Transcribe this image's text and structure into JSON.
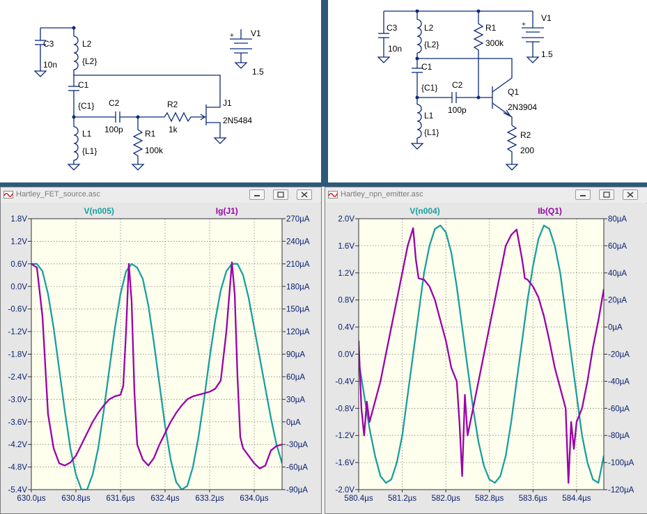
{
  "colors": {
    "trace_a": "#1a9e9e",
    "trace_b": "#9900aa",
    "plot_bg": "#ffffee",
    "grid": "#7f7f7f",
    "wire": "#0b2a7a"
  },
  "schematic_fet": {
    "labels": {
      "c3": "C3",
      "c3_val": "10n",
      "l2": "L2",
      "l2_val": "{L2}",
      "c1": "C1",
      "c1_val": "{C1}",
      "l1": "L1",
      "l1_val": "{L1}",
      "c2": "C2",
      "c2_val": "100p",
      "r1": "R1",
      "r1_val": "100k",
      "r2": "R2",
      "r2_val": "1k",
      "j1": "J1",
      "j1_model": "2N5484",
      "v1": "V1",
      "v1_val": "1.5",
      "plus": "+"
    }
  },
  "schematic_npn": {
    "labels": {
      "c3": "C3",
      "c3_val": "10n",
      "l2": "L2",
      "l2_val": "{L2}",
      "c1": "C1",
      "c1_val": "{C1}",
      "l1": "L1",
      "l1_val": "{L1}",
      "c2": "C2",
      "c2_val": "100p",
      "r1": "R1",
      "r1_val": "300k",
      "r2": "R2",
      "r2_val": "200",
      "q1": "Q1",
      "q1_model": "2N3904",
      "v1": "V1",
      "v1_val": "1.5",
      "plus": "+"
    }
  },
  "windows": [
    {
      "title": "Hartley_FET_source.asc"
    },
    {
      "title": "Hartley_npn_emitter.asc"
    }
  ],
  "chart_data": [
    {
      "type": "line",
      "series": [
        {
          "name": "V(n005)",
          "axis": "left",
          "x": [
            630.0,
            630.1,
            630.2,
            630.3,
            630.4,
            630.5,
            630.6,
            630.7,
            630.8,
            630.9,
            631.0,
            631.1,
            631.2,
            631.3,
            631.4,
            631.5,
            631.6,
            631.7,
            631.8,
            631.9,
            632.0,
            632.1,
            632.2,
            632.3,
            632.4,
            632.5,
            632.6,
            632.7,
            632.8,
            632.9,
            633.0,
            633.1,
            633.2,
            633.3,
            633.4,
            633.5,
            633.6,
            633.7,
            633.8,
            633.9,
            634.0,
            634.1,
            634.2,
            634.3,
            634.4,
            634.5
          ],
          "y": [
            0.6,
            0.6,
            0.4,
            -0.2,
            -1.1,
            -2.2,
            -3.3,
            -4.3,
            -5.0,
            -5.4,
            -5.4,
            -5.0,
            -4.3,
            -3.3,
            -2.2,
            -1.1,
            -0.2,
            0.4,
            0.6,
            0.5,
            0.2,
            -0.5,
            -1.5,
            -2.6,
            -3.7,
            -4.6,
            -5.2,
            -5.4,
            -5.3,
            -4.8,
            -4.0,
            -3.0,
            -1.9,
            -0.9,
            -0.1,
            0.4,
            0.6,
            0.6,
            0.3,
            -0.3,
            -1.1,
            -1.9,
            -2.7,
            -3.5,
            -4.2,
            -4.7
          ]
        },
        {
          "name": "Ig(J1)",
          "axis": "right",
          "x": [
            630.0,
            630.1,
            630.2,
            630.3,
            630.4,
            630.5,
            630.6,
            630.7,
            630.8,
            630.9,
            631.0,
            631.1,
            631.2,
            631.3,
            631.4,
            631.5,
            631.6,
            631.65,
            631.7,
            631.75,
            631.8,
            631.85,
            631.9,
            632.0,
            632.1,
            632.2,
            632.3,
            632.4,
            632.5,
            632.6,
            632.7,
            632.8,
            632.9,
            633.0,
            633.1,
            633.2,
            633.3,
            633.4,
            633.5,
            633.6,
            633.65,
            633.7,
            633.75,
            633.8,
            633.9,
            634.0,
            634.1,
            634.2,
            634.3,
            634.4,
            634.5
          ],
          "y": [
            210,
            205,
            140,
            10,
            -35,
            -55,
            -58,
            -54,
            -45,
            -30,
            -15,
            0,
            12,
            22,
            30,
            34,
            36,
            48,
            120,
            210,
            160,
            40,
            -30,
            -50,
            -58,
            -48,
            -30,
            -15,
            0,
            12,
            22,
            30,
            34,
            36,
            38,
            40,
            44,
            55,
            120,
            212,
            170,
            60,
            -20,
            -35,
            -45,
            -55,
            -62,
            -58,
            -38,
            -32,
            -30
          ]
        }
      ],
      "x_ticks": [
        "630.0µs",
        "630.8µs",
        "631.6µs",
        "632.4µs",
        "633.2µs",
        "634.0µs"
      ],
      "x_tick_values": [
        630.0,
        630.8,
        631.6,
        632.4,
        633.2,
        634.0
      ],
      "xlim": [
        630.0,
        634.5
      ],
      "left_ticks": [
        "1.8V",
        "1.2V",
        "0.6V",
        "0.0V",
        "-0.6V",
        "-1.2V",
        "-1.8V",
        "-2.4V",
        "-3.0V",
        "-3.6V",
        "-4.2V",
        "-4.8V",
        "-5.4V"
      ],
      "left_tick_values": [
        1.8,
        1.2,
        0.6,
        0.0,
        -0.6,
        -1.2,
        -1.8,
        -2.4,
        -3.0,
        -3.6,
        -4.2,
        -4.8,
        -5.4
      ],
      "left_lim": [
        -5.4,
        1.8
      ],
      "right_ticks": [
        "270µA",
        "240µA",
        "210µA",
        "180µA",
        "150µA",
        "120µA",
        "90µA",
        "60µA",
        "30µA",
        "0µA",
        "-30µA",
        "-60µA",
        "-90µA"
      ],
      "right_tick_values": [
        270,
        240,
        210,
        180,
        150,
        120,
        90,
        60,
        30,
        0,
        -30,
        -60,
        -90
      ],
      "right_lim": [
        -90,
        270
      ],
      "grid": true
    },
    {
      "type": "line",
      "series": [
        {
          "name": "V(n004)",
          "axis": "left",
          "x": [
            580.4,
            580.5,
            580.6,
            580.7,
            580.8,
            580.9,
            581.0,
            581.1,
            581.2,
            581.3,
            581.4,
            581.5,
            581.6,
            581.7,
            581.8,
            581.9,
            582.0,
            582.1,
            582.2,
            582.3,
            582.4,
            582.5,
            582.6,
            582.7,
            582.8,
            582.9,
            583.0,
            583.1,
            583.2,
            583.3,
            583.4,
            583.5,
            583.6,
            583.7,
            583.8,
            583.9,
            584.0,
            584.1,
            584.2,
            584.3,
            584.4,
            584.5,
            584.6,
            584.7,
            584.8,
            584.9
          ],
          "y": [
            -0.1,
            -0.6,
            -1.1,
            -1.5,
            -1.8,
            -1.9,
            -1.85,
            -1.6,
            -1.2,
            -0.6,
            0.0,
            0.6,
            1.2,
            1.6,
            1.85,
            1.9,
            1.8,
            1.5,
            1.0,
            0.4,
            -0.2,
            -0.8,
            -1.3,
            -1.65,
            -1.85,
            -1.9,
            -1.8,
            -1.5,
            -1.0,
            -0.4,
            0.2,
            0.8,
            1.3,
            1.7,
            1.9,
            1.85,
            1.6,
            1.2,
            0.6,
            0.0,
            -0.6,
            -1.2,
            -1.6,
            -1.85,
            -1.9,
            -1.5
          ]
        },
        {
          "name": "Ib(Q1)",
          "axis": "right",
          "x": [
            580.4,
            580.45,
            580.5,
            580.55,
            580.6,
            580.7,
            580.8,
            580.9,
            581.0,
            581.1,
            581.2,
            581.3,
            581.4,
            581.45,
            581.5,
            581.6,
            581.7,
            581.8,
            581.9,
            582.0,
            582.1,
            582.2,
            582.25,
            582.3,
            582.35,
            582.4,
            582.5,
            582.6,
            582.7,
            582.8,
            582.9,
            583.0,
            583.1,
            583.2,
            583.3,
            583.4,
            583.45,
            583.5,
            583.6,
            583.7,
            583.8,
            583.9,
            584.0,
            584.1,
            584.2,
            584.25,
            584.3,
            584.35,
            584.4,
            584.5,
            584.6,
            584.7,
            584.8,
            584.9
          ],
          "y": [
            -10,
            -60,
            -80,
            -55,
            -70,
            -55,
            -40,
            -20,
            0,
            20,
            40,
            60,
            73,
            50,
            36,
            35,
            30,
            20,
            5,
            -10,
            -30,
            -40,
            -70,
            -110,
            -50,
            -80,
            -60,
            -40,
            -20,
            0,
            20,
            40,
            60,
            68,
            72,
            50,
            36,
            35,
            30,
            22,
            8,
            -10,
            -30,
            -45,
            -60,
            -115,
            -70,
            -90,
            -70,
            -60,
            -40,
            -15,
            5,
            28
          ]
        }
      ],
      "x_ticks": [
        "580.4µs",
        "581.2µs",
        "582.0µs",
        "582.8µs",
        "583.6µs",
        "584.4µs"
      ],
      "x_tick_values": [
        580.4,
        581.2,
        582.0,
        582.8,
        583.6,
        584.4
      ],
      "xlim": [
        580.4,
        584.9
      ],
      "left_ticks": [
        "2.0V",
        "1.6V",
        "1.2V",
        "0.8V",
        "0.4V",
        "0.0V",
        "-0.4V",
        "-0.8V",
        "-1.2V",
        "-1.6V",
        "-2.0V"
      ],
      "left_tick_values": [
        2.0,
        1.6,
        1.2,
        0.8,
        0.4,
        0.0,
        -0.4,
        -0.8,
        -1.2,
        -1.6,
        -2.0
      ],
      "left_lim": [
        -2.0,
        2.0
      ],
      "right_ticks": [
        "80µA",
        "60µA",
        "40µA",
        "20µA",
        "0µA",
        "-20µA",
        "-40µA",
        "-60µA",
        "-80µA",
        "-100µA",
        "-120µA"
      ],
      "right_tick_values": [
        80,
        60,
        40,
        20,
        0,
        -20,
        -40,
        -60,
        -80,
        -100,
        -120
      ],
      "right_lim": [
        -120,
        80
      ],
      "grid": true
    }
  ]
}
